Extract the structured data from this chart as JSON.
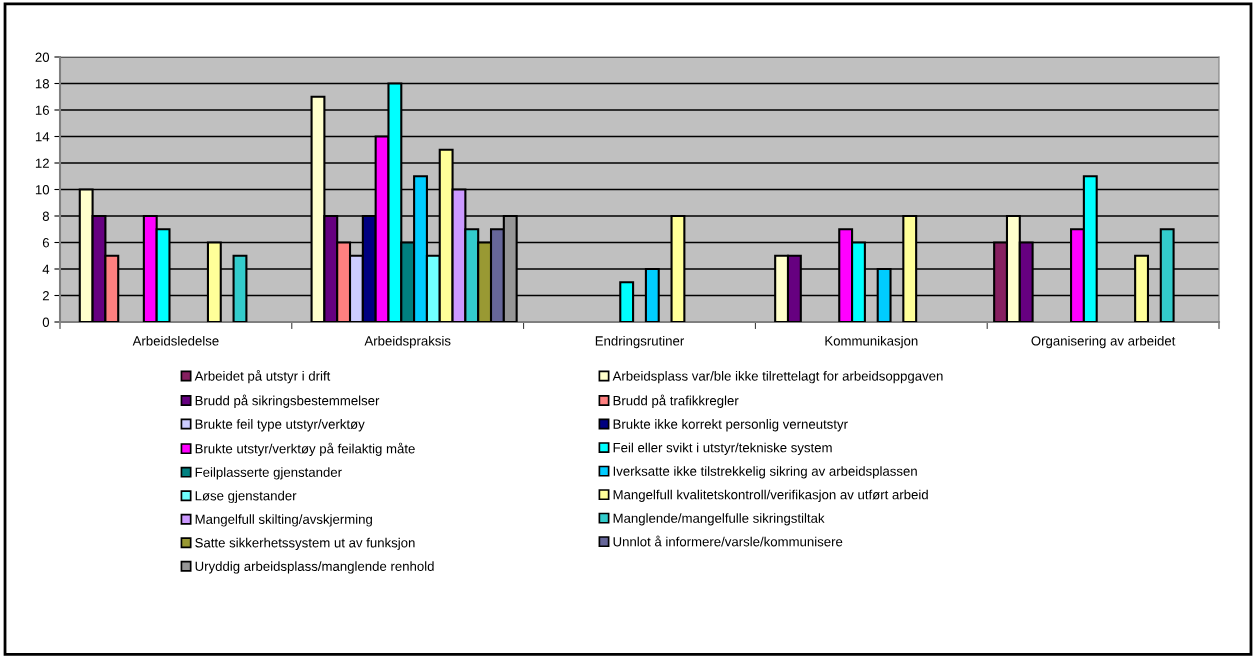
{
  "chart_data": {
    "type": "bar",
    "categories": [
      "Arbeidsledelse",
      "Arbeidspraksis",
      "Endringsrutiner",
      "Kommunikasjon",
      "Organisering av arbeidet"
    ],
    "series": [
      {
        "name": "Arbeidet på utstyr i drift",
        "color": "#862060",
        "values": [
          null,
          null,
          null,
          null,
          6
        ]
      },
      {
        "name": "Arbeidsplass var/ble ikke tilrettelagt for arbeidsoppgaven",
        "color": "#ffffcc",
        "values": [
          10,
          17,
          null,
          5,
          8
        ]
      },
      {
        "name": "Brudd på sikringsbestemmelser",
        "color": "#660080",
        "values": [
          8,
          8,
          null,
          5,
          6
        ]
      },
      {
        "name": "Brudd på trafikkregler",
        "color": "#ff8080",
        "values": [
          5,
          6,
          null,
          null,
          null
        ]
      },
      {
        "name": "Brukte feil type utstyr/verktøy",
        "color": "#ccccff",
        "values": [
          null,
          5,
          null,
          null,
          null
        ]
      },
      {
        "name": "Brukte ikke korrekt personlig verneutstyr",
        "color": "#000080",
        "values": [
          null,
          8,
          null,
          null,
          null
        ]
      },
      {
        "name": "Brukte utstyr/verktøy på feilaktig måte",
        "color": "#ff00ff",
        "values": [
          8,
          14,
          null,
          7,
          7
        ]
      },
      {
        "name": "Feil eller svikt i utstyr/tekniske system",
        "color": "#00ffff",
        "values": [
          7,
          18,
          3,
          6,
          11
        ]
      },
      {
        "name": "Feilplasserte gjenstander",
        "color": "#008080",
        "values": [
          null,
          6,
          null,
          null,
          null
        ]
      },
      {
        "name": "Iverksatte ikke tilstrekkelig sikring av arbeidsplassen",
        "color": "#00ccff",
        "values": [
          null,
          11,
          4,
          4,
          null
        ]
      },
      {
        "name": "Løse gjenstander",
        "color": "#70ffff",
        "values": [
          null,
          5,
          null,
          null,
          null
        ]
      },
      {
        "name": "Mangelfull kvalitetskontroll/verifikasjon av utført arbeid",
        "color": "#ffff99",
        "values": [
          6,
          13,
          8,
          8,
          5
        ]
      },
      {
        "name": "Mangelfull skilting/avskjerming",
        "color": "#cc99ff",
        "values": [
          null,
          10,
          null,
          null,
          null
        ]
      },
      {
        "name": "Manglende/mangelfulle sikringstiltak",
        "color": "#33cccc",
        "values": [
          5,
          7,
          null,
          null,
          7
        ]
      },
      {
        "name": "Satte sikkerhetssystem ut av funksjon",
        "color": "#999933",
        "values": [
          null,
          6,
          null,
          null,
          null
        ]
      },
      {
        "name": "Unnlot å informere/varsle/kommunisere",
        "color": "#666699",
        "values": [
          null,
          7,
          null,
          null,
          null
        ]
      },
      {
        "name": "Uryddig arbeidsplass/manglende renhold",
        "color": "#969696",
        "values": [
          null,
          8,
          null,
          null,
          null
        ]
      }
    ],
    "ylim": [
      0,
      20
    ],
    "yticks": [
      0,
      2,
      4,
      6,
      8,
      10,
      12,
      14,
      16,
      18,
      20
    ],
    "grid": "y",
    "legend": "bottom"
  }
}
